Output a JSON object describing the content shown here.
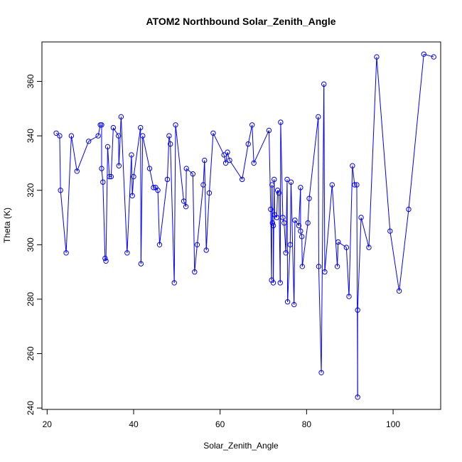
{
  "chart_data": {
    "type": "line",
    "title": "ATOM2 Northbound Solar_Zenith_Angle",
    "xlabel": "Solar_Zenith_Angle",
    "ylabel": "Theta (K)",
    "xlim": [
      18.8,
      111.0
    ],
    "ylim": [
      239.5,
      374.5
    ],
    "xticks": [
      20,
      40,
      60,
      80,
      100
    ],
    "yticks": [
      240,
      260,
      280,
      300,
      320,
      340,
      360
    ],
    "markers": "open-circle",
    "grid": false,
    "legend": "none",
    "series": [
      {
        "color": "#0000ff",
        "points": [
          [
            22.1,
            341
          ],
          [
            22.9,
            340
          ],
          [
            23.1,
            320
          ],
          [
            24.4,
            297
          ],
          [
            25.6,
            340
          ],
          [
            26.9,
            327
          ],
          [
            29.6,
            338
          ],
          [
            31.8,
            340
          ],
          [
            32.3,
            344
          ],
          [
            32.6,
            344
          ],
          [
            32.6,
            328
          ],
          [
            32.9,
            323
          ],
          [
            33.4,
            295
          ],
          [
            33.6,
            294
          ],
          [
            34.0,
            336
          ],
          [
            34.4,
            325
          ],
          [
            34.8,
            325
          ],
          [
            35.3,
            343
          ],
          [
            36.5,
            340
          ],
          [
            36.6,
            329
          ],
          [
            37.1,
            347
          ],
          [
            38.5,
            297
          ],
          [
            39.5,
            333
          ],
          [
            39.7,
            318
          ],
          [
            40.0,
            325
          ],
          [
            41.6,
            343
          ],
          [
            41.7,
            293
          ],
          [
            42.1,
            340
          ],
          [
            43.7,
            328
          ],
          [
            44.6,
            321
          ],
          [
            45.1,
            321
          ],
          [
            45.6,
            320
          ],
          [
            46.0,
            300
          ],
          [
            47.8,
            324
          ],
          [
            48.2,
            340
          ],
          [
            48.5,
            337
          ],
          [
            49.4,
            286
          ],
          [
            49.7,
            344
          ],
          [
            51.6,
            316
          ],
          [
            52.1,
            314
          ],
          [
            52.2,
            328
          ],
          [
            53.7,
            326
          ],
          [
            54.1,
            290
          ],
          [
            54.7,
            300
          ],
          [
            56.1,
            322
          ],
          [
            56.4,
            331
          ],
          [
            56.8,
            298
          ],
          [
            57.5,
            319
          ],
          [
            58.4,
            341
          ],
          [
            60.9,
            333
          ],
          [
            61.3,
            330
          ],
          [
            61.7,
            334
          ],
          [
            62.2,
            331
          ],
          [
            65.1,
            324
          ],
          [
            66.5,
            337
          ],
          [
            67.4,
            344
          ],
          [
            67.8,
            330
          ],
          [
            71.3,
            342
          ],
          [
            71.7,
            313
          ],
          [
            71.9,
            287
          ],
          [
            72.0,
            322
          ],
          [
            72.1,
            308
          ],
          [
            72.3,
            307
          ],
          [
            72.3,
            286
          ],
          [
            72.5,
            324
          ],
          [
            72.6,
            311
          ],
          [
            73.1,
            310
          ],
          [
            73.3,
            320
          ],
          [
            73.6,
            319
          ],
          [
            73.9,
            286
          ],
          [
            74.0,
            345
          ],
          [
            74.5,
            310
          ],
          [
            74.8,
            308
          ],
          [
            75.2,
            297
          ],
          [
            75.5,
            324
          ],
          [
            75.6,
            279
          ],
          [
            76.2,
            300
          ],
          [
            76.4,
            323
          ],
          [
            77.1,
            278
          ],
          [
            77.3,
            309
          ],
          [
            78.2,
            307
          ],
          [
            78.6,
            321
          ],
          [
            78.6,
            305
          ],
          [
            78.9,
            303
          ],
          [
            79.0,
            292
          ],
          [
            80.3,
            308
          ],
          [
            80.6,
            317
          ],
          [
            82.7,
            347
          ],
          [
            82.8,
            292
          ],
          [
            83.4,
            253
          ],
          [
            84.0,
            359
          ],
          [
            84.2,
            290
          ],
          [
            85.9,
            322
          ],
          [
            87.1,
            292
          ],
          [
            87.3,
            301
          ],
          [
            89.2,
            299
          ],
          [
            89.8,
            281
          ],
          [
            90.6,
            329
          ],
          [
            91.1,
            322
          ],
          [
            91.6,
            322
          ],
          [
            91.8,
            244
          ],
          [
            91.8,
            276
          ],
          [
            92.6,
            310
          ],
          [
            94.4,
            299
          ],
          [
            96.2,
            369
          ],
          [
            99.3,
            305
          ],
          [
            101.4,
            283
          ],
          [
            103.6,
            313
          ],
          [
            107.1,
            370
          ],
          [
            109.4,
            369
          ]
        ]
      }
    ]
  }
}
